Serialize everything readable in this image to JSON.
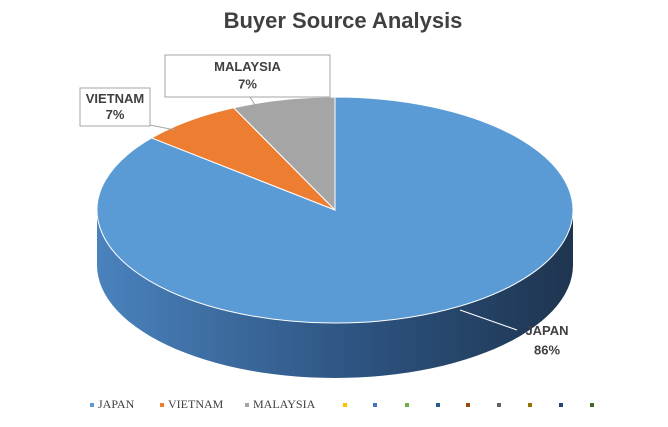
{
  "chart_data": {
    "type": "pie",
    "title": "Buyer Source Analysis",
    "categories": [
      "JAPAN",
      "VIETNAM",
      "MALAYSIA"
    ],
    "values": [
      86,
      7,
      7
    ],
    "value_labels": [
      "86%",
      "7%",
      "7%"
    ],
    "colors": [
      "#5b9bd5",
      "#ed7d31",
      "#a5a5a5"
    ],
    "legend": "bottom"
  }
}
